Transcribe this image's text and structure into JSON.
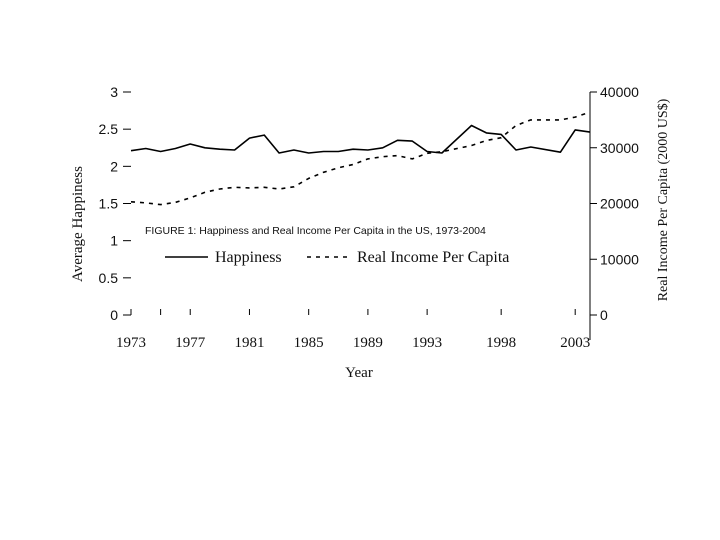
{
  "chart_data": {
    "type": "line",
    "caption": "FIGURE 1: Happiness and Real Income Per Capita in the US, 1973-2004",
    "xlabel": "Year",
    "ylabel_left": "Average Happiness",
    "ylabel_right": "Real Income Per Capita (2000 US$)",
    "x_ticks": [
      1973,
      1977,
      1981,
      1985,
      1989,
      1993,
      1998,
      2003
    ],
    "xlim": [
      1973,
      2004
    ],
    "y_left": {
      "lim": [
        0,
        3
      ],
      "ticks": [
        0,
        0.5,
        1,
        1.5,
        2,
        2.5,
        3
      ],
      "tick_labels": [
        "0",
        "0.5",
        "1",
        "1.5",
        "2",
        "2.5",
        "3"
      ]
    },
    "y_right": {
      "lim": [
        0,
        40000
      ],
      "ticks": [
        0,
        10000,
        20000,
        30000,
        40000
      ],
      "tick_labels": [
        "0",
        "10000",
        "20000",
        "30000",
        "40000"
      ]
    },
    "grid": false,
    "legend_position": "inside-center",
    "series": [
      {
        "name": "Happiness",
        "axis": "left",
        "style": "solid",
        "color": "#000000",
        "x": [
          1973,
          1974,
          1975,
          1976,
          1977,
          1978,
          1979,
          1980,
          1981,
          1982,
          1983,
          1984,
          1985,
          1986,
          1987,
          1988,
          1989,
          1990,
          1991,
          1992,
          1993,
          1994,
          1996,
          1997,
          1998,
          1999,
          2000,
          2002,
          2003,
          2004
        ],
        "y": [
          2.21,
          2.24,
          2.2,
          2.24,
          2.3,
          2.25,
          2.23,
          2.22,
          2.38,
          2.42,
          2.18,
          2.22,
          2.18,
          2.2,
          2.2,
          2.23,
          2.22,
          2.25,
          2.35,
          2.34,
          2.2,
          2.18,
          2.55,
          2.45,
          2.43,
          2.22,
          2.26,
          2.19,
          2.49,
          2.46
        ]
      },
      {
        "name": "Real Income Per Capita",
        "axis": "right",
        "style": "dashed",
        "color": "#000000",
        "x": [
          1973,
          1974,
          1975,
          1976,
          1977,
          1978,
          1979,
          1980,
          1981,
          1982,
          1983,
          1984,
          1985,
          1986,
          1987,
          1988,
          1989,
          1990,
          1991,
          1992,
          1993,
          1994,
          1996,
          1997,
          1998,
          1999,
          2000,
          2002,
          2003,
          2004
        ],
        "y": [
          20300,
          20100,
          19800,
          20200,
          21000,
          22000,
          22600,
          22900,
          22800,
          22900,
          22600,
          23000,
          24500,
          25600,
          26400,
          27000,
          28000,
          28400,
          28600,
          28000,
          29000,
          29300,
          30400,
          31300,
          31800,
          34000,
          35000,
          35000,
          35500,
          36400
        ]
      }
    ]
  }
}
